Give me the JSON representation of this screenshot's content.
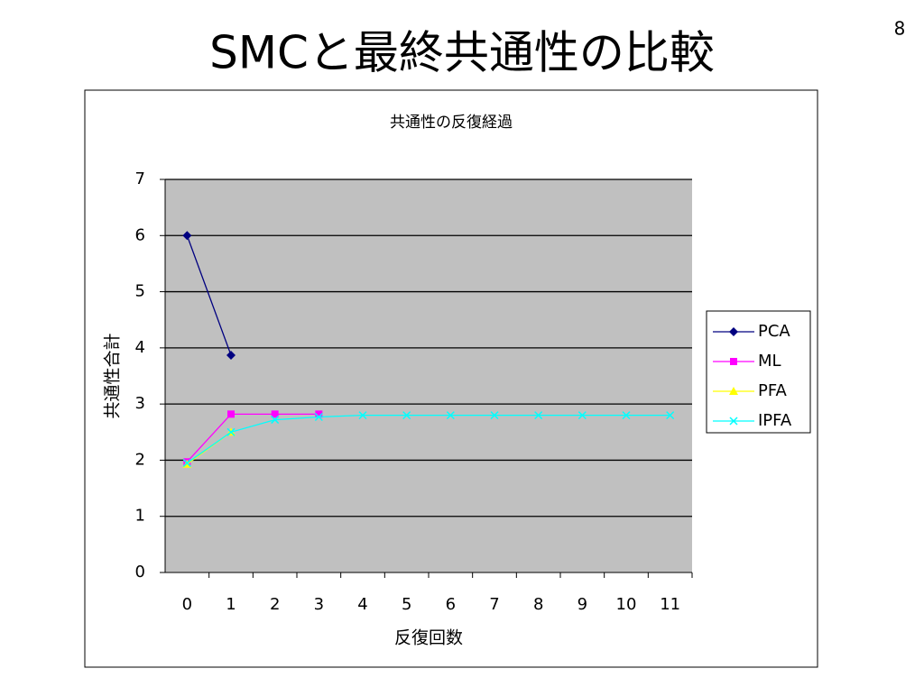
{
  "slide": {
    "title": "SMCと最終共通性の比較",
    "page_number": "8"
  },
  "chart_data": {
    "type": "line",
    "title": "共通性の反復経過",
    "xlabel": "反復回数",
    "ylabel": "共通性合計",
    "categories": [
      "0",
      "1",
      "2",
      "3",
      "4",
      "5",
      "6",
      "7",
      "8",
      "9",
      "10",
      "11"
    ],
    "series": [
      {
        "name": "PCA",
        "color": "#000080",
        "marker": "diamond",
        "values": [
          6.0,
          3.87,
          null,
          null,
          null,
          null,
          null,
          null,
          null,
          null,
          null,
          null
        ]
      },
      {
        "name": "ML",
        "color": "#ff00ff",
        "marker": "square",
        "values": [
          1.97,
          2.82,
          2.82,
          2.82,
          null,
          null,
          null,
          null,
          null,
          null,
          null,
          null
        ]
      },
      {
        "name": "PFA",
        "color": "#ffff00",
        "marker": "triangle",
        "values": [
          1.93,
          2.5,
          null,
          null,
          null,
          null,
          null,
          null,
          null,
          null,
          null,
          null
        ]
      },
      {
        "name": "IPFA",
        "color": "#00ffff",
        "marker": "x",
        "values": [
          1.95,
          2.5,
          2.72,
          2.77,
          2.8,
          2.8,
          2.8,
          2.8,
          2.8,
          2.8,
          2.8,
          2.8
        ]
      }
    ],
    "ylim": [
      0,
      7
    ],
    "yticks": [
      0,
      1,
      2,
      3,
      4,
      5,
      6,
      7
    ],
    "grid": true,
    "plot_background": "#c0c0c0",
    "legend": "right"
  }
}
